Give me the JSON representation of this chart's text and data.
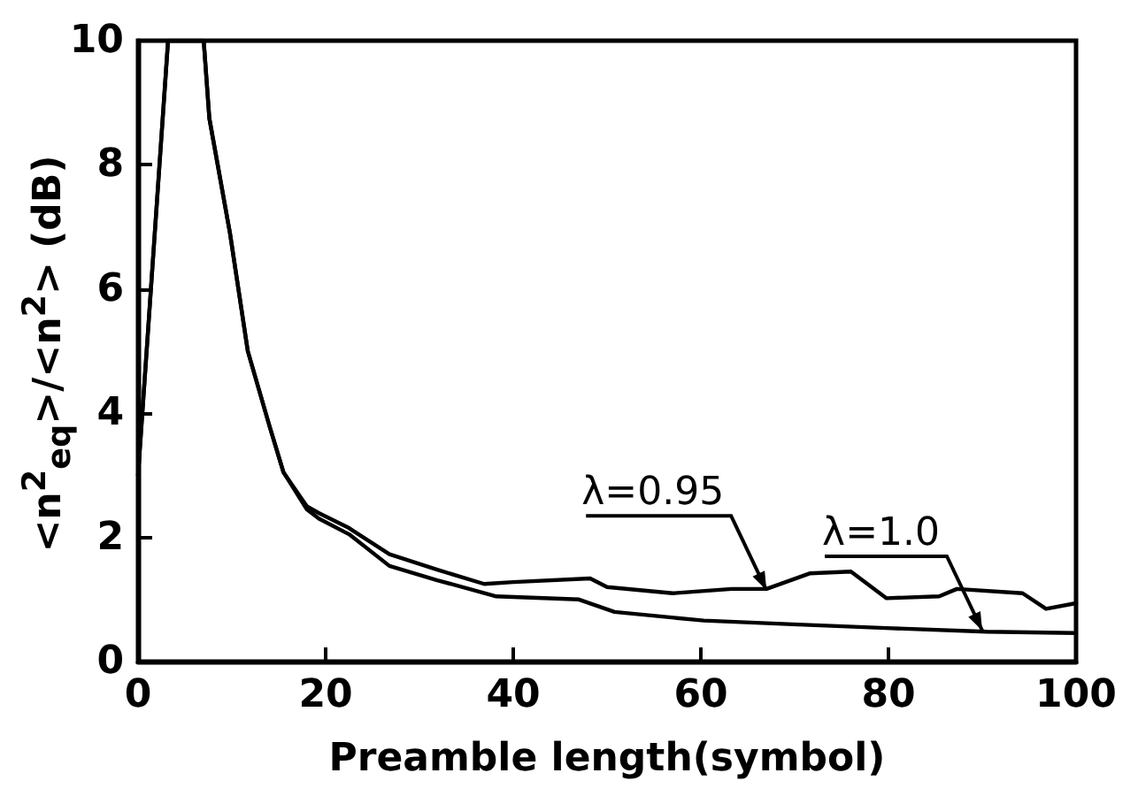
{
  "chart_data": {
    "type": "line",
    "xlabel": "Preamble length(symbol)",
    "ylabel": "<n$^{2}$$_{eq}$>/<n$^{2}$> (dB)",
    "xlim": [
      0,
      100
    ],
    "ylim": [
      0,
      10
    ],
    "xticks": [
      0,
      20,
      40,
      60,
      80,
      100
    ],
    "yticks": [
      0,
      2,
      4,
      6,
      8,
      10
    ],
    "grid": false,
    "marker": "none",
    "line_style": "solid",
    "series": [
      {
        "color": "#000000",
        "x": [
          0,
          3.2,
          7,
          7.6,
          9.8,
          11.7,
          14,
          15.5,
          18,
          19.3,
          22.5,
          23,
          26.8,
          31.9,
          36.9,
          40,
          48.2,
          50,
          57,
          63.3,
          67,
          71.6,
          76,
          79.8,
          85.4,
          87.3,
          94.3,
          96.8,
          100
        ],
        "values": [
          3,
          10,
          10,
          8.75,
          6.9,
          5,
          3.8,
          3.05,
          2.5,
          2.39,
          2.15,
          2.1,
          1.73,
          1.48,
          1.25,
          1.28,
          1.34,
          1.2,
          1.1,
          1.17,
          1.17,
          1.42,
          1.45,
          1.02,
          1.05,
          1.17,
          1.1,
          0.85,
          0.94
        ]
      },
      {
        "color": "#000000",
        "x": [
          0,
          3.2,
          7,
          7.6,
          9.8,
          11.7,
          14,
          15.5,
          18,
          19.3,
          22.5,
          26.8,
          31.9,
          38.2,
          47,
          50.8,
          60.3,
          69.8,
          79.8,
          90.5,
          100
        ],
        "values": [
          3,
          10,
          10,
          8.75,
          6.9,
          5,
          3.8,
          3.05,
          2.45,
          2.3,
          2.05,
          1.54,
          1.31,
          1.05,
          1,
          0.8,
          0.66,
          0.6,
          0.54,
          0.48,
          0.46
        ]
      }
    ],
    "annotations": [
      {
        "text": "λ=0.95",
        "x": 67,
        "y": 1.15
      },
      {
        "text": "λ=1.0",
        "x": 90,
        "y": 0.5
      }
    ]
  }
}
